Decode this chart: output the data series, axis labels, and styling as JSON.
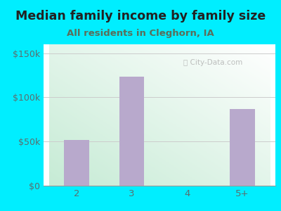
{
  "title": "Median family income by family size",
  "subtitle": "All residents in Cleghorn, IA",
  "categories": [
    "2",
    "3",
    "4",
    "5+"
  ],
  "values": [
    52000,
    123000,
    0,
    87000
  ],
  "bar_color": "#b8a9cc",
  "ylim": [
    0,
    160000
  ],
  "yticks": [
    0,
    50000,
    100000,
    150000
  ],
  "ytick_labels": [
    "$0",
    "$50k",
    "$100k",
    "$150k"
  ],
  "background_outer": "#00eeff",
  "title_color": "#222222",
  "subtitle_color": "#5a6e5a",
  "tick_color": "#5a6e6e",
  "watermark": "City-Data.com",
  "title_fontsize": 12.5,
  "subtitle_fontsize": 9.5,
  "grid_color": "#cccccc"
}
